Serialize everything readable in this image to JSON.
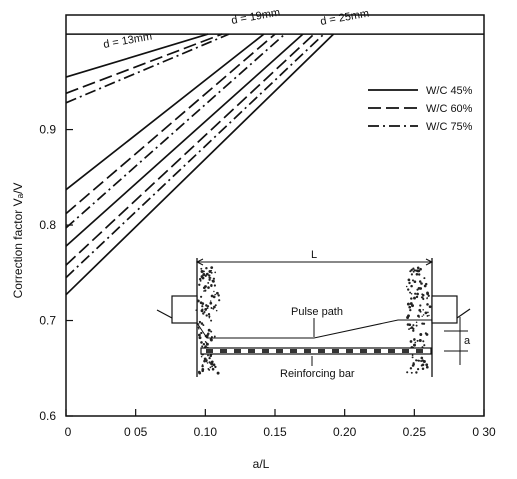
{
  "chart_data": {
    "type": "line",
    "title": "",
    "xlabel": "a/L",
    "ylabel": "Correction factor Vₐ/V",
    "xlim": [
      0,
      0.3
    ],
    "ylim": [
      0.6,
      1.02
    ],
    "x_ticks": [
      0,
      0.05,
      0.1,
      0.15,
      0.2,
      0.25,
      0.3
    ],
    "x_tick_labels": [
      "0",
      "0 05",
      "0.10",
      "0.15",
      "0.20",
      "0.25",
      "0 30"
    ],
    "y_ticks": [
      0.6,
      0.7,
      0.8,
      0.9
    ],
    "y_tick_labels": [
      "0.6",
      "0.7",
      "0.8",
      "0.9"
    ],
    "grid": false,
    "legend_position": "top-right",
    "legend": [
      {
        "label": "W/C 45%",
        "dash": "solid"
      },
      {
        "label": "W/C 60%",
        "dash": "longdash"
      },
      {
        "label": "W/C 75%",
        "dash": "dashdot"
      }
    ],
    "group_labels": [
      "d = 13mm",
      "d = 19mm",
      "d = 25mm"
    ],
    "series": [
      {
        "group": "d = 13mm",
        "style": "solid",
        "x": [
          0,
          0.102
        ],
        "y": [
          0.955,
          1.0
        ]
      },
      {
        "group": "d = 13mm",
        "style": "longdash",
        "x": [
          0,
          0.112
        ],
        "y": [
          0.938,
          1.0
        ]
      },
      {
        "group": "d = 13mm",
        "style": "dashdot",
        "x": [
          0,
          0.117
        ],
        "y": [
          0.928,
          1.0
        ]
      },
      {
        "group": "d = 19mm",
        "style": "solid",
        "x": [
          0,
          0.142
        ],
        "y": [
          0.837,
          1.0
        ]
      },
      {
        "group": "d = 19mm",
        "style": "longdash",
        "x": [
          0,
          0.15
        ],
        "y": [
          0.812,
          1.0
        ]
      },
      {
        "group": "d = 19mm",
        "style": "dashdot",
        "x": [
          0,
          0.157
        ],
        "y": [
          0.797,
          1.0
        ]
      },
      {
        "group": "d = 25mm",
        "style": "solid",
        "x": [
          0,
          0.17
        ],
        "y": [
          0.778,
          1.0
        ]
      },
      {
        "group": "d = 25mm",
        "style": "longdash",
        "x": [
          0,
          0.178
        ],
        "y": [
          0.758,
          1.0
        ]
      },
      {
        "group": "d = 25mm",
        "style": "dashdot",
        "x": [
          0,
          0.185
        ],
        "y": [
          0.745,
          1.0
        ]
      },
      {
        "group": "d = 25mm",
        "style": "solid",
        "x": [
          0,
          0.192
        ],
        "y": [
          0.727,
          1.0
        ]
      }
    ],
    "inset": {
      "dimension_label": "L",
      "pulse_label": "Pulse path",
      "bar_label": "Reinforcing bar",
      "offset_label": "a"
    }
  }
}
